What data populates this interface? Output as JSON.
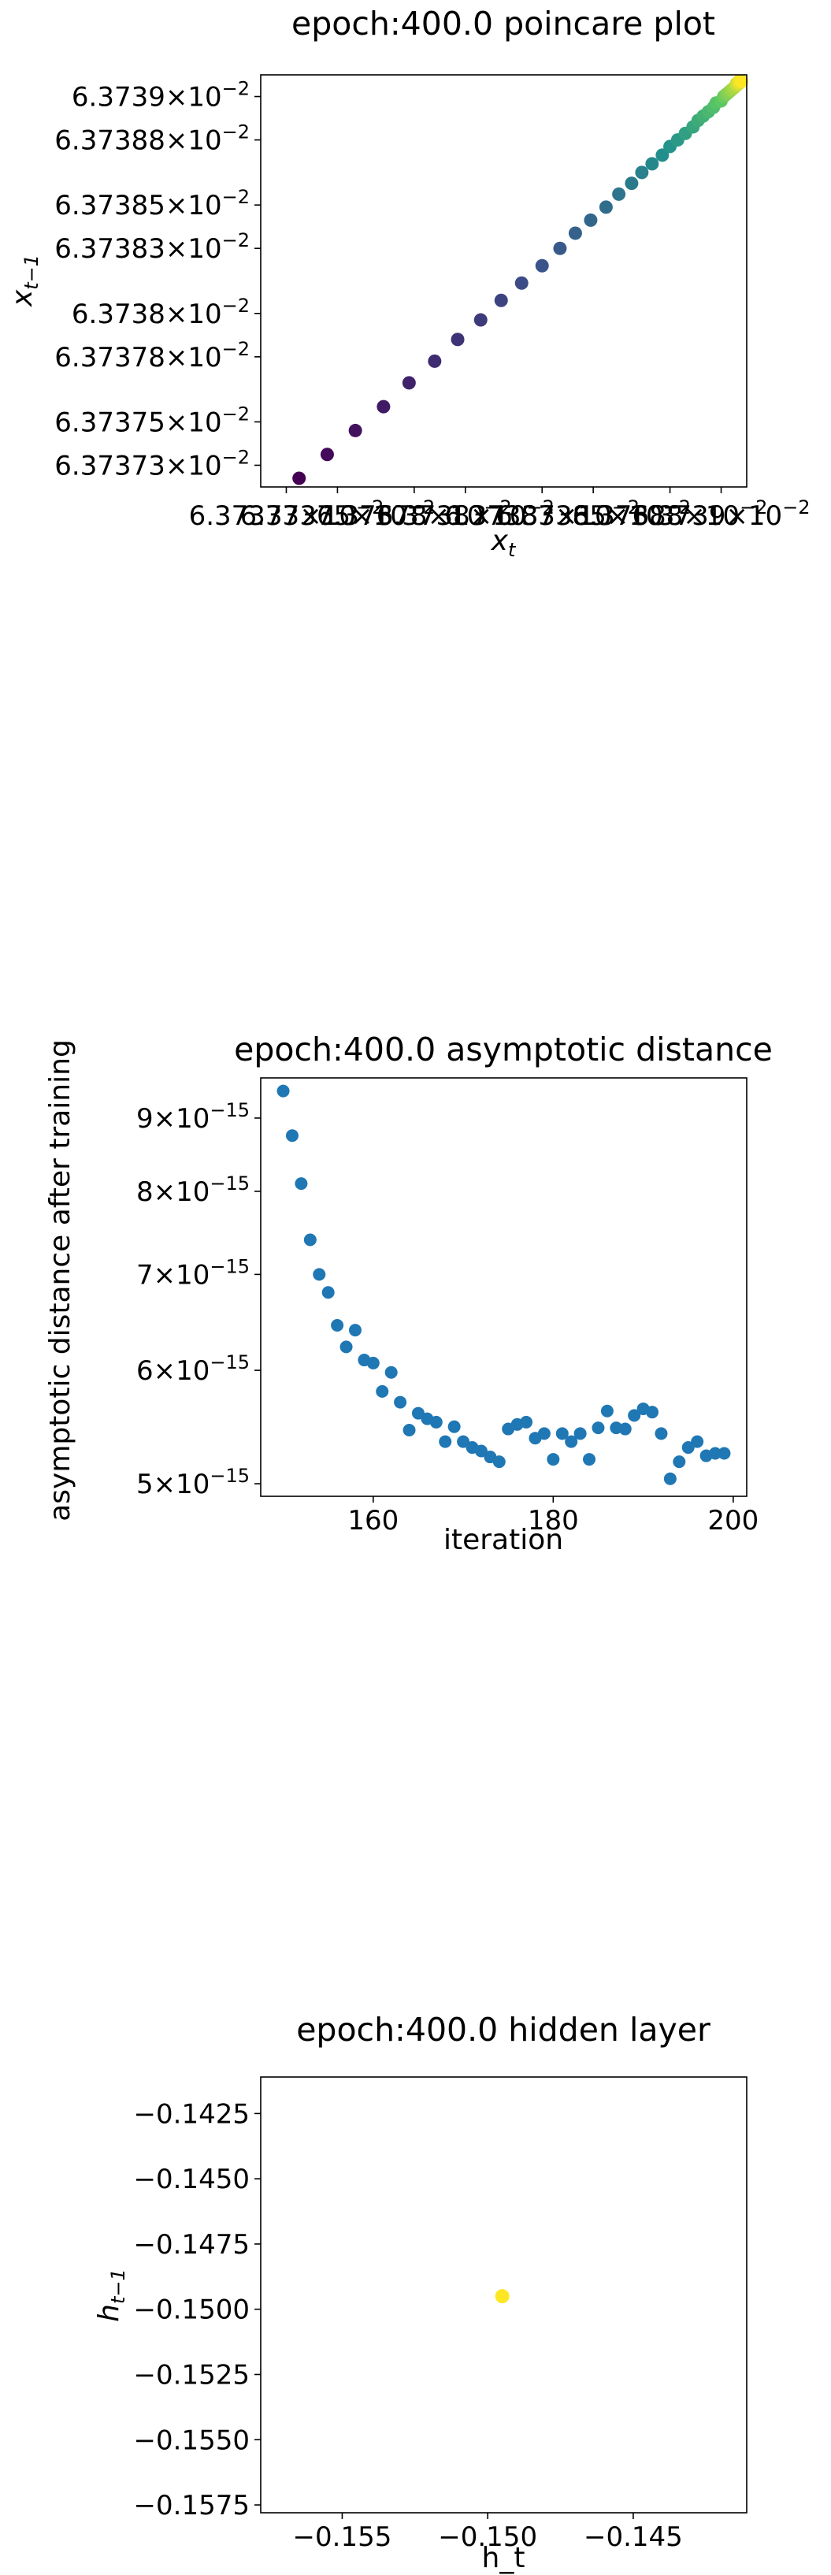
{
  "chart_data": [
    {
      "type": "scatter",
      "title": "epoch:400.0 poincare plot",
      "xlabel": "x",
      "xlabel_sub": "t",
      "ylabel": "x",
      "ylabel_sub": "t−1",
      "scale": "log",
      "colormap": "viridis",
      "xlim": [
        0.0637372,
        0.0637391
      ],
      "ylim": [
        0.0637372,
        0.0637391
      ],
      "yticks": [
        {
          "value": 0.0637373,
          "mantissa": "6.37373",
          "exp": "−2"
        },
        {
          "value": 0.0637375,
          "mantissa": "6.37375",
          "exp": "−2"
        },
        {
          "value": 0.0637378,
          "mantissa": "6.37378",
          "exp": "−2"
        },
        {
          "value": 0.063738,
          "mantissa": "6.3738",
          "exp": "−2"
        },
        {
          "value": 0.0637383,
          "mantissa": "6.37383",
          "exp": "−2"
        },
        {
          "value": 0.0637385,
          "mantissa": "6.37385",
          "exp": "−2"
        },
        {
          "value": 0.0637388,
          "mantissa": "6.37388",
          "exp": "−2"
        },
        {
          "value": 0.063739,
          "mantissa": "6.3739",
          "exp": "−2"
        }
      ],
      "xticks": [
        {
          "value": 0.0637373,
          "mantissa": "6.37373",
          "exp": "−2"
        },
        {
          "value": 0.0637375,
          "mantissa": "6.37375",
          "exp": "−2"
        },
        {
          "value": 0.0637378,
          "mantissa": "6.37378",
          "exp": "−2"
        },
        {
          "value": 0.063738,
          "mantissa": "6.3738",
          "exp": "−2"
        },
        {
          "value": 0.0637383,
          "mantissa": "6.37383",
          "exp": "−2"
        },
        {
          "value": 0.0637385,
          "mantissa": "6.37385",
          "exp": "−2"
        },
        {
          "value": 0.0637388,
          "mantissa": "6.37388",
          "exp": "−2"
        },
        {
          "value": 0.063739,
          "mantissa": "6.3739",
          "exp": "−2"
        }
      ],
      "points": [
        [
          0.06373735,
          0.06373724
        ],
        [
          0.06373746,
          0.06373735
        ],
        [
          0.06373757,
          0.06373746
        ],
        [
          0.06373768,
          0.06373757
        ],
        [
          0.06373778,
          0.06373768
        ],
        [
          0.06373788,
          0.06373778
        ],
        [
          0.06373797,
          0.06373788
        ],
        [
          0.06373806,
          0.06373797
        ],
        [
          0.06373814,
          0.06373806
        ],
        [
          0.06373822,
          0.06373814
        ],
        [
          0.0637383,
          0.06373822
        ],
        [
          0.06373837,
          0.0637383
        ],
        [
          0.06373843,
          0.06373837
        ],
        [
          0.06373849,
          0.06373843
        ],
        [
          0.06373855,
          0.06373849
        ],
        [
          0.0637386,
          0.06373855
        ],
        [
          0.06373865,
          0.0637386
        ],
        [
          0.06373869,
          0.06373865
        ],
        [
          0.06373873,
          0.06373869
        ],
        [
          0.06373877,
          0.06373873
        ],
        [
          0.0637388,
          0.06373877
        ],
        [
          0.06373883,
          0.0637388
        ],
        [
          0.06373886,
          0.06373883
        ],
        [
          0.06373889,
          0.06373886
        ],
        [
          0.06373891,
          0.06373889
        ],
        [
          0.06373893,
          0.06373891
        ],
        [
          0.06373895,
          0.06373893
        ],
        [
          0.06373897,
          0.06373895
        ],
        [
          0.06373898,
          0.06373897
        ],
        [
          0.063739,
          0.06373898
        ],
        [
          0.06373901,
          0.063739
        ],
        [
          0.06373902,
          0.06373901
        ],
        [
          0.06373903,
          0.06373902
        ],
        [
          0.06373904,
          0.06373903
        ],
        [
          0.06373905,
          0.06373904
        ],
        [
          0.06373906,
          0.06373905
        ],
        [
          0.06373906,
          0.06373906
        ],
        [
          0.06373907,
          0.06373906
        ],
        [
          0.06373907,
          0.06373907
        ],
        [
          0.06373908,
          0.06373907
        ]
      ]
    },
    {
      "type": "scatter",
      "title": "epoch:400.0 asymptotic distance",
      "xlabel": "iteration",
      "ylabel": "asymptotic distance after training",
      "yscale": "log",
      "color": "#1f77b4",
      "xlim": [
        147.5,
        201.5
      ],
      "ylim": [
        4.9e-15,
        9.6e-15
      ],
      "xticks": [
        160,
        180,
        200
      ],
      "yticks": [
        {
          "value": 5e-15,
          "mantissa": "5",
          "exp": "−15"
        },
        {
          "value": 6e-15,
          "mantissa": "6",
          "exp": "−15"
        },
        {
          "value": 7e-15,
          "mantissa": "7",
          "exp": "−15"
        },
        {
          "value": 8e-15,
          "mantissa": "8",
          "exp": "−15"
        },
        {
          "value": 9e-15,
          "mantissa": "9",
          "exp": "−15"
        }
      ],
      "x": [
        150,
        151,
        152,
        153,
        154,
        155,
        156,
        157,
        158,
        159,
        160,
        161,
        162,
        163,
        164,
        165,
        166,
        167,
        168,
        169,
        170,
        171,
        172,
        173,
        174,
        175,
        176,
        177,
        178,
        179,
        180,
        181,
        182,
        183,
        184,
        185,
        186,
        187,
        188,
        189,
        190,
        191,
        192,
        193,
        194,
        195,
        196,
        197,
        198,
        199
      ],
      "y": [
        9.4e-15,
        8.75e-15,
        8.1e-15,
        7.4e-15,
        7e-15,
        6.8e-15,
        6.45e-15,
        6.23e-15,
        6.4e-15,
        6.1e-15,
        6.07e-15,
        5.8e-15,
        5.98e-15,
        5.7e-15,
        5.45e-15,
        5.6e-15,
        5.55e-15,
        5.52e-15,
        5.35e-15,
        5.48e-15,
        5.35e-15,
        5.3e-15,
        5.27e-15,
        5.22e-15,
        5.18e-15,
        5.46e-15,
        5.5e-15,
        5.52e-15,
        5.38e-15,
        5.42e-15,
        5.2e-15,
        5.42e-15,
        5.35e-15,
        5.42e-15,
        5.2e-15,
        5.47e-15,
        5.62e-15,
        5.47e-15,
        5.46e-15,
        5.58e-15,
        5.64e-15,
        5.61e-15,
        5.42e-15,
        5.04e-15,
        5.18e-15,
        5.3e-15,
        5.35e-15,
        5.23e-15,
        5.25e-15,
        5.25e-15
      ]
    },
    {
      "type": "scatter",
      "title": "epoch:400.0 hidden layer",
      "xlabel": "h_t",
      "ylabel": "h",
      "ylabel_sub": "t−1",
      "color": "#fde725",
      "xlim": [
        -0.1578,
        -0.1411
      ],
      "ylim": [
        -0.1578,
        -0.1411
      ],
      "xticks": [
        {
          "value": -0.155,
          "label": "−0.155"
        },
        {
          "value": -0.15,
          "label": "−0.150"
        },
        {
          "value": -0.145,
          "label": "−0.145"
        }
      ],
      "yticks": [
        {
          "value": -0.1425,
          "label": "−0.1425"
        },
        {
          "value": -0.145,
          "label": "−0.1450"
        },
        {
          "value": -0.1475,
          "label": "−0.1475"
        },
        {
          "value": -0.15,
          "label": "−0.1500"
        },
        {
          "value": -0.1525,
          "label": "−0.1525"
        },
        {
          "value": -0.155,
          "label": "−0.1550"
        },
        {
          "value": -0.1575,
          "label": "−0.1575"
        }
      ],
      "points": [
        [
          -0.1495,
          -0.1495
        ]
      ]
    }
  ]
}
